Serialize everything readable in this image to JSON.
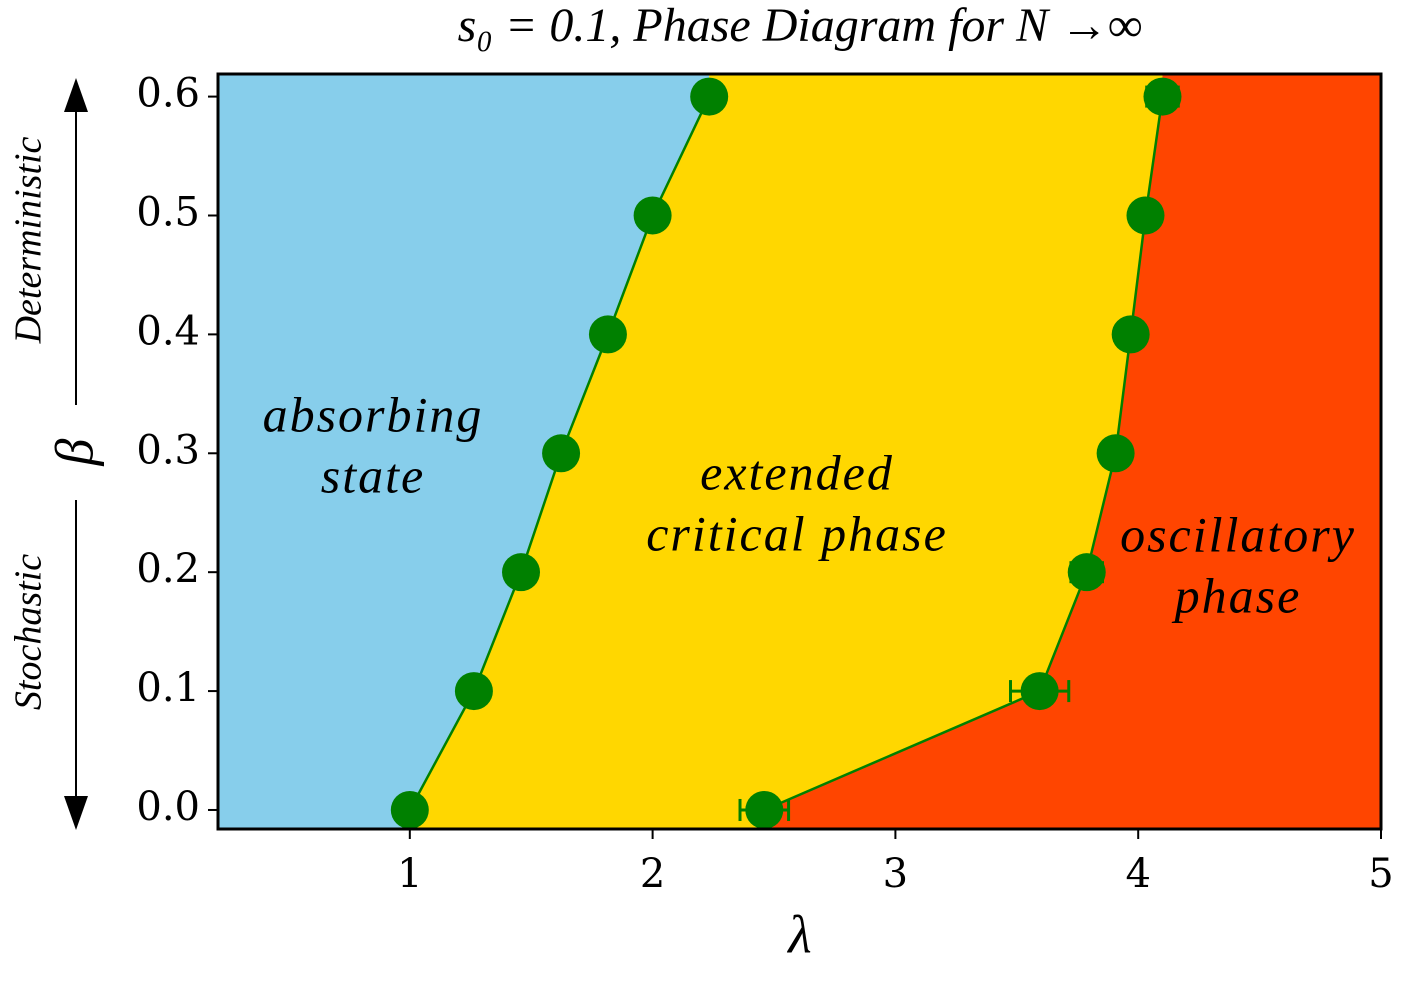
{
  "chart_data": {
    "type": "line",
    "title": "s₀ = 0.1, Phase Diagram for N →∞",
    "x_label": "λ",
    "y_label": "β",
    "y_arrow_up_label": "Deterministic",
    "y_arrow_down_label": "Stochastic",
    "annotations": [
      {
        "lines": [
          "absorbing",
          "state"
        ]
      },
      {
        "lines": [
          "extended",
          "critical phase"
        ]
      },
      {
        "lines": [
          "oscillatory",
          "phase"
        ]
      }
    ],
    "region_colors": [
      "#87ceeb",
      "#ffd700",
      "#ff4500"
    ],
    "series": [
      {
        "color": "green",
        "x": [
          1.0,
          1.264,
          1.458,
          1.623,
          1.816,
          2.0,
          2.233
        ],
        "values": [
          0,
          0.1,
          0.2,
          0.3,
          0.4,
          0.5,
          0.6
        ]
      },
      {
        "color": "green",
        "x": [
          2.46,
          3.594,
          3.788,
          3.907,
          3.969,
          4.03,
          4.1
        ],
        "values": [
          0,
          0.1,
          0.2,
          0.3,
          0.4,
          0.5,
          0.6
        ],
        "xerr": [
          0.1,
          0.12,
          0.065,
          0.02,
          0.02,
          0.02,
          0.065
        ]
      }
    ],
    "xlim": [
      0.21,
      5
    ],
    "ylim": [
      -0.016,
      0.619
    ],
    "xticks": [
      1,
      2,
      3,
      4,
      5
    ],
    "yticks": [
      {
        "value": 0,
        "label": "0.0"
      },
      0.1,
      0.2,
      0.3,
      0.4,
      0.5,
      0.6
    ]
  }
}
